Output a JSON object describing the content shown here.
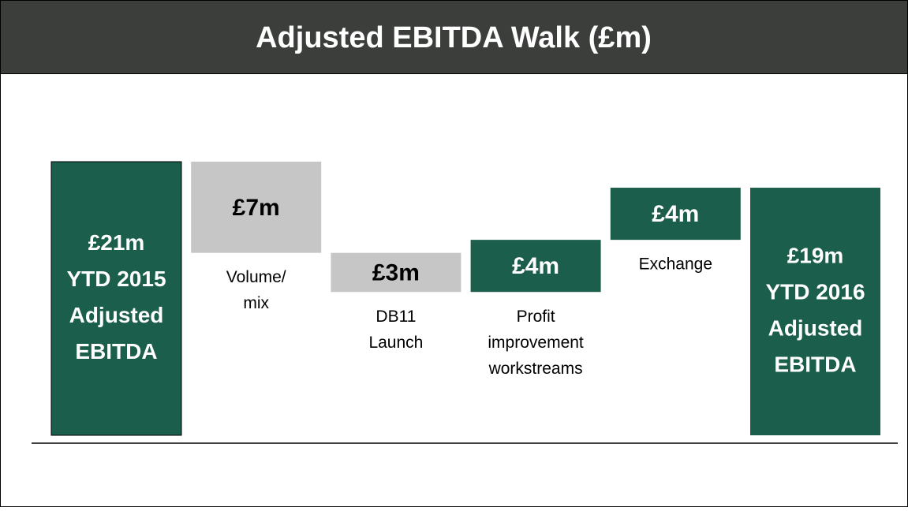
{
  "chart_data": {
    "type": "waterfall",
    "title": "Adjusted EBITDA Walk (£m)",
    "categories": [
      [
        "YTD 2015",
        "Adjusted",
        "EBITDA"
      ],
      [
        "Volume/",
        "mix"
      ],
      [
        "DB11",
        "Launch"
      ],
      [
        "Profit",
        "improvement",
        "workstreams"
      ],
      [
        "Exchange"
      ],
      [
        "YTD 2016",
        "Adjusted",
        "EBITDA"
      ]
    ],
    "measure": [
      "total",
      "relative",
      "relative",
      "relative",
      "relative",
      "total"
    ],
    "values": [
      21,
      -7,
      -3,
      4,
      4,
      19
    ],
    "value_labels": [
      "£21m",
      "£7m",
      "£3m",
      "£4m",
      "£4m",
      "£19m"
    ],
    "colors": {
      "total": "#1a5e4b",
      "decrease": "#c6c6c6",
      "increase": "#1a5e4b"
    }
  }
}
